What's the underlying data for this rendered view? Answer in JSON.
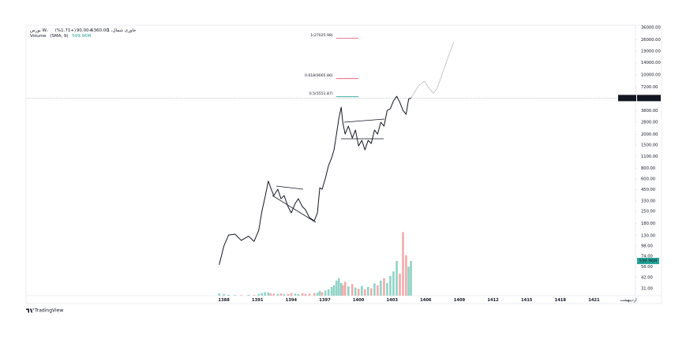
{
  "chart_data": {
    "type": "line",
    "log_scale": true,
    "title": "بورس W،خاوری شمال، 1",
    "last": {
      "value": 5360,
      "label": "5360.00"
    },
    "change": {
      "value": 90,
      "label": "+90.00"
    },
    "change_pct": {
      "value": 1.71,
      "label": "(+1.71%)"
    },
    "symbol_tag": "خاور",
    "date_label": "اردیبهشت",
    "footer": "TradingView",
    "xlim": [
      1370.5,
      1424.7
    ],
    "xticks": [
      1388,
      1391,
      1394,
      1397,
      1400,
      1403,
      1406,
      1409,
      1412,
      1415,
      1418,
      1421
    ],
    "ylim": [
      25.6,
      38400
    ],
    "yticks": [
      {
        "value": 36000,
        "label": "36000.00"
      },
      {
        "value": 26000,
        "label": "26000.00"
      },
      {
        "value": 19000,
        "label": "19000.00"
      },
      {
        "value": 14000,
        "label": "14000.00"
      },
      {
        "value": 10000,
        "label": "10000.00"
      },
      {
        "value": 7200,
        "label": "7200.00"
      },
      {
        "value": 3800,
        "label": "3800.00"
      },
      {
        "value": 2800,
        "label": "2800.00"
      },
      {
        "value": 2000,
        "label": "2000.00"
      },
      {
        "value": 1500,
        "label": "1500.00"
      },
      {
        "value": 1100,
        "label": "1100.00"
      },
      {
        "value": 800,
        "label": "800.00"
      },
      {
        "value": 600,
        "label": "600.00"
      },
      {
        "value": 450,
        "label": "450.00"
      },
      {
        "value": 330,
        "label": "330.00"
      },
      {
        "value": 250,
        "label": "250.00"
      },
      {
        "value": 180,
        "label": "180.00"
      },
      {
        "value": 130,
        "label": "130.00"
      },
      {
        "value": 98,
        "label": "98.00"
      },
      {
        "value": 74,
        "label": "74.00"
      },
      {
        "value": 56,
        "label": "56.00"
      },
      {
        "value": 42,
        "label": "42.00"
      },
      {
        "value": 31,
        "label": "31.00"
      }
    ],
    "series": [
      {
        "color": "#131722",
        "style": "solid",
        "x": [
          1387.58,
          1388.0,
          1388.42,
          1388.99,
          1389.55,
          1390.19,
          1390.69,
          1391.11,
          1391.39,
          1391.67,
          1391.96,
          1392.17,
          1392.45,
          1392.81,
          1393.09,
          1393.37,
          1393.72,
          1394.01,
          1394.36,
          1394.64,
          1395.0,
          1395.28,
          1395.63,
          1396.06,
          1396.34,
          1396.55,
          1396.76,
          1397.05,
          1397.33,
          1397.61,
          1397.82,
          1398.04,
          1398.25,
          1398.46,
          1398.6,
          1398.81,
          1399.1,
          1399.45,
          1399.73,
          1400.01,
          1400.3,
          1400.58,
          1400.86,
          1401.14,
          1401.43,
          1401.71,
          1401.99,
          1402.28,
          1402.56,
          1402.84,
          1403.12,
          1403.41,
          1403.69,
          1403.97,
          1404.25,
          1404.47,
          1404.68
        ],
        "values": [
          59,
          98,
          132,
          135,
          114,
          128,
          111,
          150,
          252,
          367,
          567,
          474,
          383,
          455,
          352,
          383,
          284,
          240,
          310,
          352,
          284,
          261,
          211,
          194,
          240,
          474,
          455,
          612,
          863,
          1067,
          1321,
          2023,
          3097,
          4178,
          2787,
          2023,
          2506,
          1820,
          2254,
          1469,
          1707,
          1321,
          1707,
          1567,
          2254,
          2023,
          2787,
          2506,
          3837,
          4010,
          4955,
          5623,
          4763,
          3837,
          3444,
          5214,
          5360
        ]
      },
      {
        "color": "#787b86",
        "style": "dotted",
        "x": [
          1404.68,
          1405.38,
          1405.88,
          1406.3,
          1406.66,
          1407.01,
          1407.51,
          1408.0,
          1408.5
        ],
        "values": [
          5360,
          7586,
          8433,
          6966,
          6124,
          6966,
          10670,
          16330,
          24500
        ]
      }
    ],
    "levels": {
      "x": [
        1398,
        1400
      ],
      "items": [
        {
          "label": "1(27025.98)",
          "value": 27025.98,
          "color": "#e0506e"
        },
        {
          "label": "0.618(9065.86)",
          "value": 9065.86,
          "color": "#e0506e"
        },
        {
          "label": "0.5(5551.87)",
          "value": 5551.87,
          "color": "#26a69a"
        }
      ]
    },
    "volume": {
      "name": "Volume",
      "params": "(SMA, 9)",
      "last": {
        "value": 599.96,
        "label": "599.96M"
      },
      "ylim": [
        0,
        1200
      ],
      "up_color": "#8fd3c6",
      "down_color": "#f3aaaa",
      "label_color": "#26a69a",
      "values": [
        40,
        25,
        15,
        12,
        10,
        14,
        12,
        30,
        45,
        60,
        55,
        40,
        35,
        30,
        38,
        25,
        30,
        45,
        35,
        28,
        40,
        30,
        35,
        45,
        50,
        80,
        60,
        90,
        110,
        150,
        180,
        260,
        300,
        220,
        180,
        240,
        160,
        200,
        140,
        120,
        170,
        110,
        150,
        130,
        210,
        180,
        260,
        300,
        220,
        340,
        420,
        600,
        380,
        1100,
        700,
        500,
        599.96
      ]
    }
  }
}
